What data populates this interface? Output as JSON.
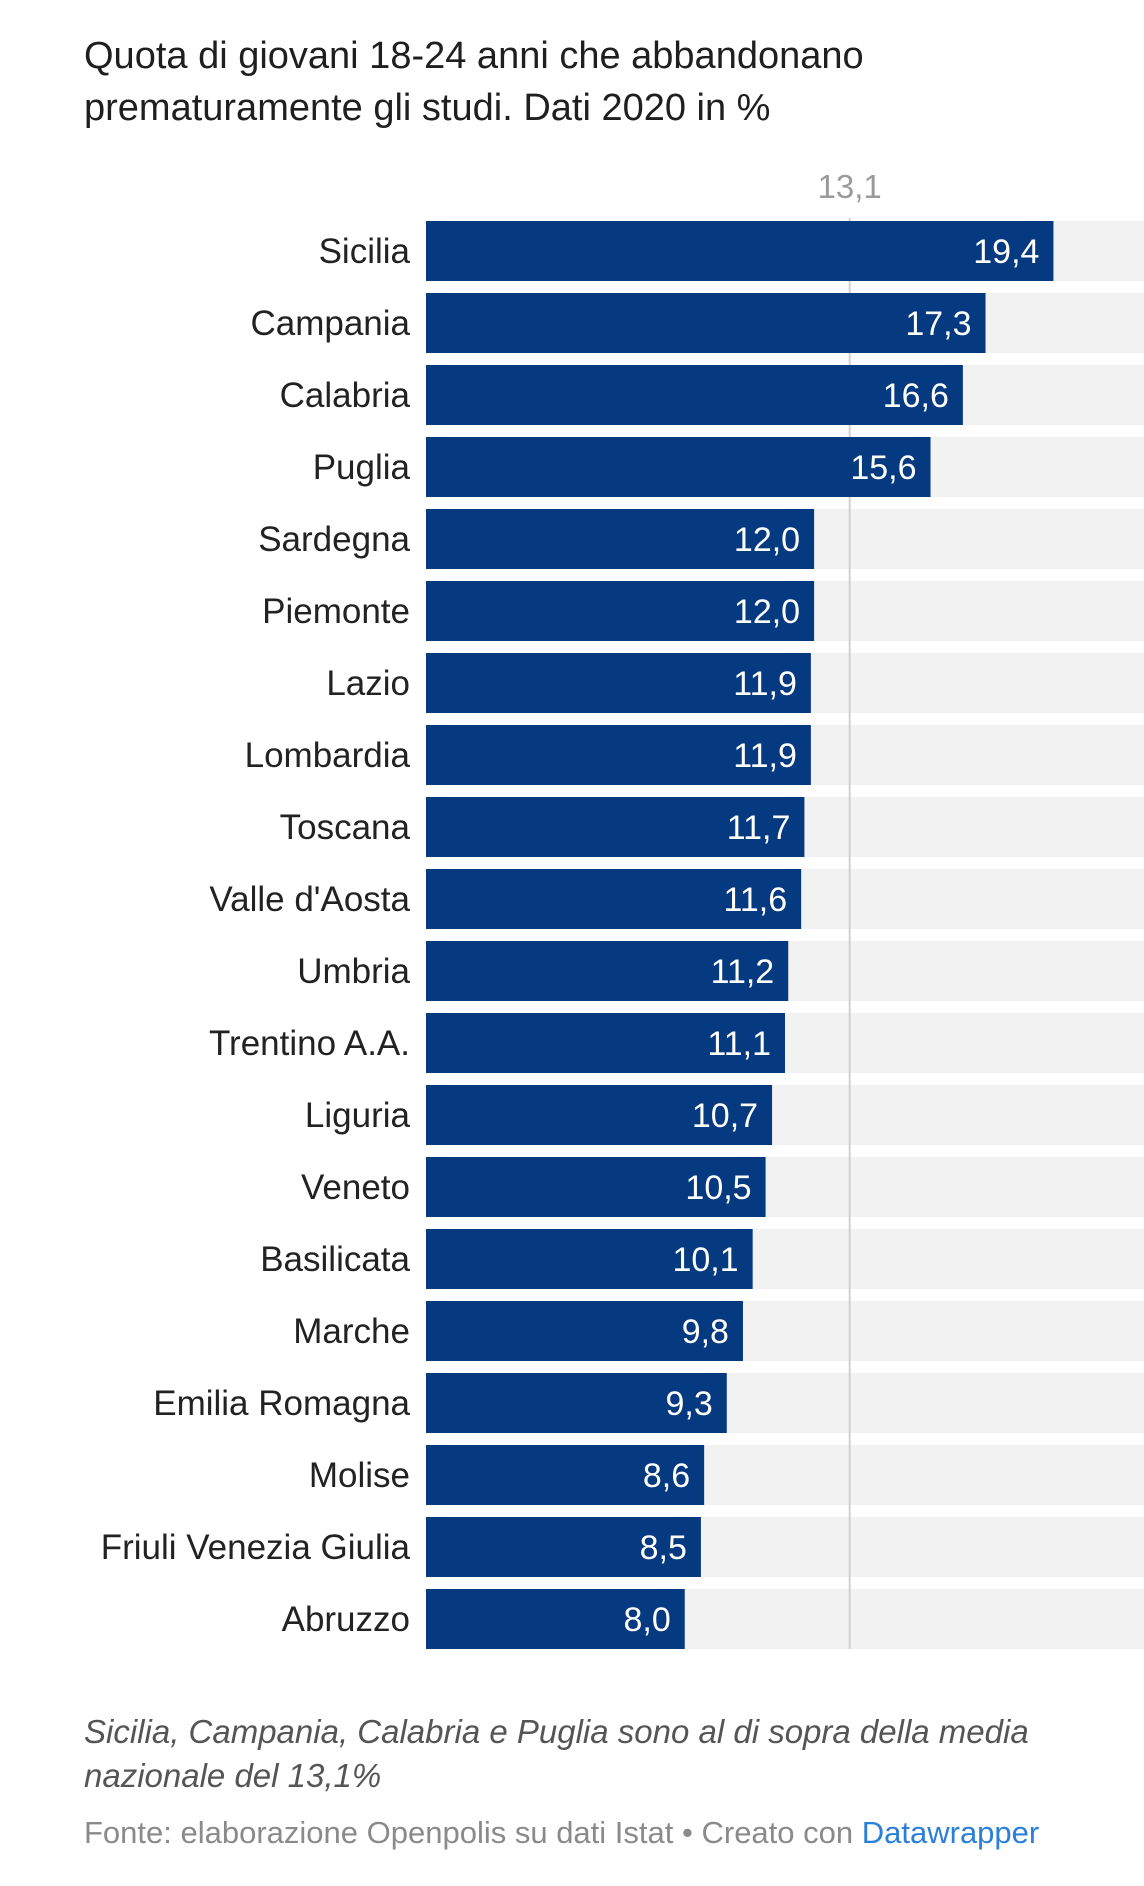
{
  "title": "Quota di giovani 18-24 anni che abbandonano prematuramente gli studi. Dati 2020 in %",
  "note": "Sicilia, Campania, Calabria e Puglia sono al di sopra della media nazionale del 13,1%",
  "footer": {
    "source": "Fonte: elaborazione Openpolis su dati Istat",
    "separator": "•",
    "created_with": "Creato con",
    "tool": "Datawrapper"
  },
  "colors": {
    "bar": "#053a80",
    "track": "#f2f2f2",
    "refline": "#d0d0d0"
  },
  "chart_data": {
    "type": "bar",
    "orientation": "horizontal",
    "title": "Quota di giovani 18-24 anni che abbandonano prematuramente gli studi. Dati 2020 in %",
    "categories": [
      "Sicilia",
      "Campania",
      "Calabria",
      "Puglia",
      "Sardegna",
      "Piemonte",
      "Lazio",
      "Lombardia",
      "Toscana",
      "Valle d'Aosta",
      "Umbria",
      "Trentino A.A.",
      "Liguria",
      "Veneto",
      "Basilicata",
      "Marche",
      "Emilia Romagna",
      "Molise",
      "Friuli Venezia Giulia",
      "Abruzzo"
    ],
    "values": [
      19.4,
      17.3,
      16.6,
      15.6,
      12.0,
      12.0,
      11.9,
      11.9,
      11.7,
      11.6,
      11.2,
      11.1,
      10.7,
      10.5,
      10.1,
      9.8,
      9.3,
      8.6,
      8.5,
      8.0
    ],
    "value_labels": [
      "19,4",
      "17,3",
      "16,6",
      "15,6",
      "12,0",
      "12,0",
      "11,9",
      "11,9",
      "11,7",
      "11,6",
      "11,2",
      "11,1",
      "10,7",
      "10,5",
      "10,1",
      "9,8",
      "9,3",
      "8,6",
      "8,5",
      "8,0"
    ],
    "reference_line": {
      "value": 13.1,
      "label": "13,1"
    },
    "xlim": [
      0,
      22.2
    ],
    "grid": false,
    "legend": "none"
  }
}
